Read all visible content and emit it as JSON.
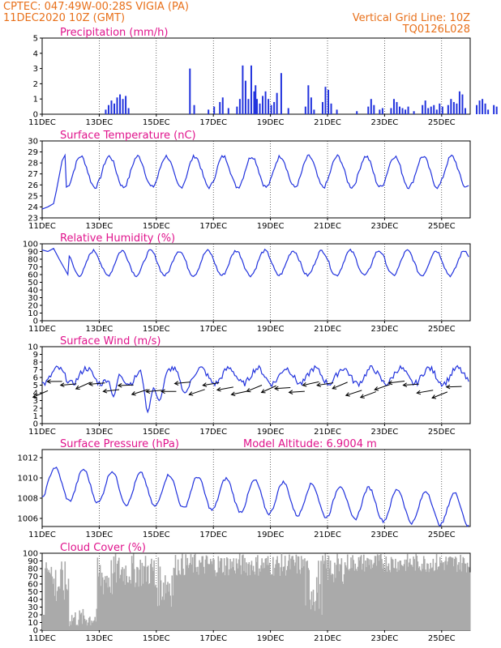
{
  "header": {
    "line1_left": "CPTEC:   047:49W-00:28S   VIGIA (PA)",
    "line2_left": "11DEC2020  10Z (GMT)",
    "line2_right": "Vertical Grid Line: 10Z",
    "line3_right": "TQ0126L028"
  },
  "colors": {
    "header": "#e8701a",
    "title": "#e0138c",
    "series": "#2233dd",
    "cloud": "#aaaaaa"
  },
  "x_labels": [
    "11DEC",
    "13DEC",
    "15DEC",
    "17DEC",
    "19DEC",
    "21DEC",
    "23DEC",
    "25DEC"
  ],
  "chart_data": [
    {
      "type": "bar",
      "title": "Precipitation (mm/h)",
      "ylim": [
        0,
        5
      ],
      "yticks": [
        0,
        1,
        2,
        3,
        4,
        5
      ],
      "x_start_day": 11,
      "x_end_day": 26,
      "bars": [
        [
          13.2,
          0.3
        ],
        [
          13.3,
          0.6
        ],
        [
          13.4,
          0.9
        ],
        [
          13.5,
          0.7
        ],
        [
          13.6,
          1.1
        ],
        [
          13.7,
          1.3
        ],
        [
          13.8,
          1.0
        ],
        [
          13.9,
          1.2
        ],
        [
          14.0,
          0.4
        ],
        [
          16.15,
          3.0
        ],
        [
          16.3,
          0.6
        ],
        [
          16.8,
          0.3
        ],
        [
          17.0,
          0.5
        ],
        [
          17.2,
          0.8
        ],
        [
          17.3,
          1.1
        ],
        [
          17.5,
          0.4
        ],
        [
          17.8,
          0.5
        ],
        [
          17.9,
          1.0
        ],
        [
          18.0,
          3.2
        ],
        [
          18.1,
          2.2
        ],
        [
          18.2,
          1.0
        ],
        [
          18.3,
          3.2
        ],
        [
          18.4,
          1.5
        ],
        [
          18.45,
          1.9
        ],
        [
          18.5,
          1.0
        ],
        [
          18.6,
          0.7
        ],
        [
          18.7,
          1.2
        ],
        [
          18.8,
          1.5
        ],
        [
          18.9,
          1.0
        ],
        [
          19.0,
          0.6
        ],
        [
          19.1,
          0.8
        ],
        [
          19.2,
          1.4
        ],
        [
          19.35,
          2.7
        ],
        [
          19.6,
          0.4
        ],
        [
          20.2,
          0.5
        ],
        [
          20.3,
          1.9
        ],
        [
          20.4,
          1.1
        ],
        [
          20.5,
          0.3
        ],
        [
          20.8,
          0.8
        ],
        [
          20.9,
          1.8
        ],
        [
          21.0,
          1.6
        ],
        [
          21.1,
          0.7
        ],
        [
          21.3,
          0.3
        ],
        [
          22.0,
          0.2
        ],
        [
          22.4,
          0.5
        ],
        [
          22.5,
          1.0
        ],
        [
          22.6,
          0.6
        ],
        [
          22.8,
          0.3
        ],
        [
          22.9,
          0.4
        ],
        [
          23.2,
          0.4
        ],
        [
          23.3,
          1.0
        ],
        [
          23.4,
          0.8
        ],
        [
          23.5,
          0.5
        ],
        [
          23.6,
          0.4
        ],
        [
          23.7,
          0.3
        ],
        [
          23.8,
          0.5
        ],
        [
          24.0,
          0.2
        ],
        [
          24.3,
          0.6
        ],
        [
          24.4,
          0.9
        ],
        [
          24.5,
          0.4
        ],
        [
          24.6,
          0.5
        ],
        [
          24.7,
          0.6
        ],
        [
          24.8,
          0.3
        ],
        [
          24.9,
          0.7
        ],
        [
          25.0,
          0.5
        ],
        [
          25.2,
          0.6
        ],
        [
          25.3,
          1.0
        ],
        [
          25.4,
          0.8
        ],
        [
          25.5,
          0.7
        ],
        [
          25.6,
          1.5
        ],
        [
          25.7,
          1.3
        ],
        [
          25.8,
          0.4
        ],
        [
          26.2,
          0.6
        ],
        [
          26.3,
          0.9
        ],
        [
          26.4,
          1.0
        ],
        [
          26.5,
          0.7
        ],
        [
          26.6,
          0.3
        ],
        [
          26.8,
          0.6
        ],
        [
          26.9,
          0.5
        ]
      ]
    },
    {
      "type": "line",
      "title": "Surface Temperature (nC)",
      "ylim": [
        23,
        30
      ],
      "yticks": [
        23,
        24,
        25,
        26,
        27,
        28,
        29,
        30
      ],
      "base": 27.2,
      "amp": 1.4,
      "noise": 0.35,
      "phase": 0.1,
      "start_values": [
        [
          11.0,
          23.8
        ],
        [
          11.2,
          24.0
        ],
        [
          11.4,
          24.3
        ],
        [
          11.5,
          25.5
        ],
        [
          11.7,
          28.2
        ],
        [
          11.8,
          28.7
        ]
      ]
    },
    {
      "type": "line",
      "title": "Relative Humidity (%)",
      "ylim": [
        0,
        100
      ],
      "yticks": [
        0,
        10,
        20,
        30,
        40,
        50,
        60,
        70,
        80,
        90,
        100
      ],
      "base": 75,
      "amp": 16,
      "noise": 4,
      "phase": 0.55,
      "start_values": [
        [
          11.0,
          92
        ],
        [
          11.2,
          90
        ],
        [
          11.4,
          94
        ],
        [
          11.6,
          80
        ],
        [
          11.9,
          60
        ]
      ]
    },
    {
      "type": "line",
      "title": "Surface Wind (m/s)",
      "ylim": [
        0,
        10
      ],
      "yticks": [
        0,
        1,
        2,
        3,
        4,
        5,
        6,
        7,
        8,
        9,
        10
      ],
      "base": 6.2,
      "amp": 1.0,
      "noise": 0.8,
      "phase": 0.3,
      "dips": [
        [
          13.5,
          3.5
        ],
        [
          14.7,
          1.5
        ],
        [
          15.1,
          3.0
        ],
        [
          16.0,
          4.0
        ]
      ]
    },
    {
      "type": "line",
      "title": "Surface Pressure (hPa)",
      "subtitle": "Model Altitude: 6.9004 m",
      "ylim": [
        1005.2,
        1012.8
      ],
      "yticks": [
        1006,
        1008,
        1010,
        1012
      ],
      "base": 1009.5,
      "amp": 1.6,
      "noise": 0.3,
      "phase": 0.2,
      "trend": -0.18
    },
    {
      "type": "bar",
      "title": "Cloud Cover (%)",
      "ylim": [
        0,
        100
      ],
      "yticks": [
        0,
        10,
        20,
        30,
        40,
        50,
        60,
        70,
        80,
        90,
        100
      ]
    }
  ]
}
